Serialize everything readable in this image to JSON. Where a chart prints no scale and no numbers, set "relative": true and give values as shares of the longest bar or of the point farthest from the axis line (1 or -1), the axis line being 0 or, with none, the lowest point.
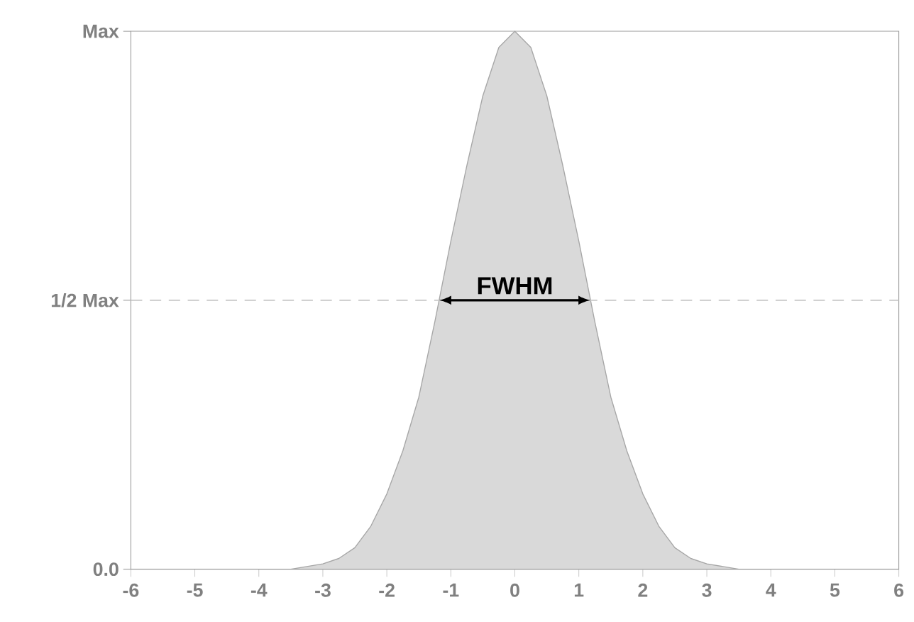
{
  "chart_data": {
    "type": "area",
    "x": [
      -4,
      -3.5,
      -3,
      -2.75,
      -2.5,
      -2.25,
      -2,
      -1.75,
      -1.5,
      -1.25,
      -1,
      -0.75,
      -0.5,
      -0.25,
      0,
      0.25,
      0.5,
      0.75,
      1,
      1.25,
      1.5,
      1.75,
      2,
      2.25,
      2.5,
      2.75,
      3,
      3.5,
      4
    ],
    "series": [
      {
        "color": "#d9d9d9",
        "values": [
          0,
          0,
          0.01,
          0.02,
          0.04,
          0.08,
          0.14,
          0.22,
          0.32,
          0.46,
          0.61,
          0.75,
          0.88,
          0.97,
          1,
          0.97,
          0.88,
          0.75,
          0.61,
          0.46,
          0.32,
          0.22,
          0.14,
          0.08,
          0.04,
          0.02,
          0.01,
          0,
          0
        ]
      }
    ],
    "xlim": [
      -6,
      6
    ],
    "xticks": [
      -6,
      -5,
      -4,
      -3,
      -2,
      -1,
      0,
      1,
      2,
      3,
      4,
      5,
      6
    ],
    "relative": true,
    "ref_lines": [
      {
        "axis": "y",
        "value": 0.5,
        "color": "#c8c8c8",
        "line_style": "dashed",
        "label": "1/2 Max"
      }
    ],
    "annotations": [
      {
        "text": "FWHM",
        "x": 0,
        "y": 0.5
      },
      "Max",
      "0.0"
    ],
    "grid": false
  }
}
